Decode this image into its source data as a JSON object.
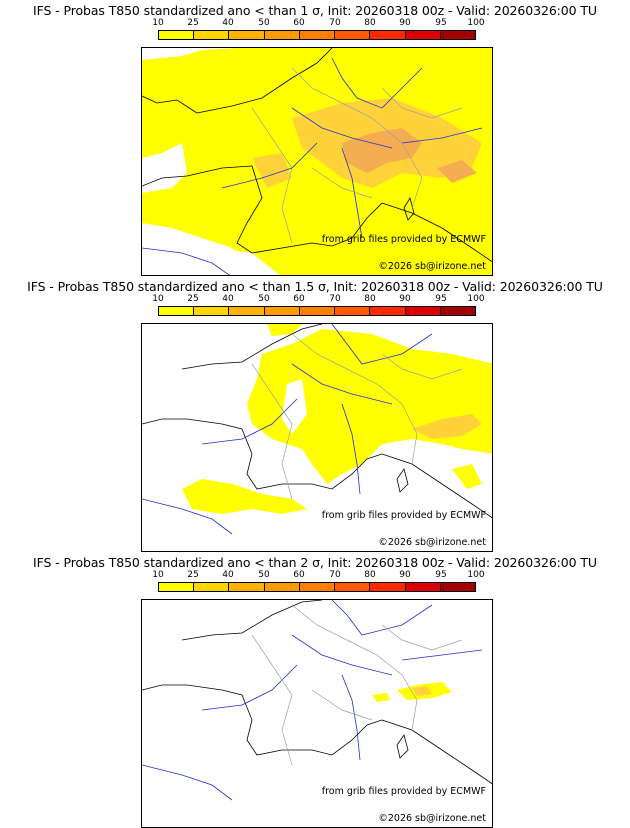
{
  "colors": {
    "scale": [
      "#ffff00",
      "#ffd700",
      "#ffb300",
      "#ff9a00",
      "#ff7f00",
      "#ff5a00",
      "#ff2a00",
      "#dd0000",
      "#a00000",
      "#601000"
    ],
    "fill_low": "#ffff00",
    "fill_mid": "#ffd23a",
    "fill_high": "#f5ad52",
    "coast": "#000000",
    "rivers": "#2030d0",
    "borders": "#a0a0a0"
  },
  "scale_labels": [
    "10",
    "25",
    "40",
    "50",
    "60",
    "70",
    "80",
    "90",
    "95",
    "100"
  ],
  "panels": [
    {
      "title": "IFS - Probas T850  standardized ano < than 1 σ, Init: 20260318 00z - Valid: 20260326:00 TU",
      "credit_source": "from grib files provided by ECMWF",
      "credit_copyright": "©2026 sb@irizone.net"
    },
    {
      "title": "IFS - Probas T850  standardized ano < than 1.5 σ, Init: 20260318 00z - Valid: 20260326:00 TU",
      "credit_source": "from grib files provided by ECMWF",
      "credit_copyright": "©2026 sb@irizone.net"
    },
    {
      "title": "IFS - Probas T850  standardized ano < than 2 σ, Init: 20260318 00z - Valid: 20260326:00 TU",
      "credit_source": "from grib files provided by ECMWF",
      "credit_copyright": "©2026 sb@irizone.net"
    }
  ]
}
